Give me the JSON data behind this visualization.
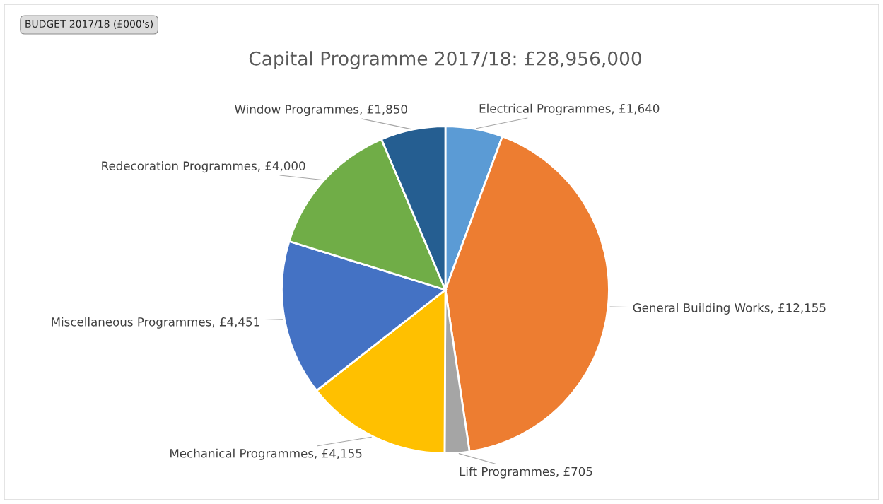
{
  "chart_data": {
    "type": "pie",
    "title": "Capital Programme 2017/18: £28,956,000",
    "categories": [
      "Electrical Programmes",
      "General Building Works",
      "Lift Programmes",
      "Mechanical Programmes",
      "Miscellaneous Programmes",
      "Redecoration Programmes",
      "Window Programmes"
    ],
    "values": [
      1640,
      12155,
      705,
      4155,
      4451,
      4000,
      1850
    ],
    "value_labels": [
      "£1,640",
      "£12,155",
      "£705",
      "£4,155",
      "£4,451",
      "£4,000",
      "£1,850"
    ],
    "colors": [
      "#5b9bd5",
      "#ed7d31",
      "#a5a5a5",
      "#ffc000",
      "#4472c4",
      "#70ad47",
      "#255e91"
    ],
    "annotations": [
      "BUDGET 2017/18 (£000's)"
    ],
    "legend": false
  }
}
